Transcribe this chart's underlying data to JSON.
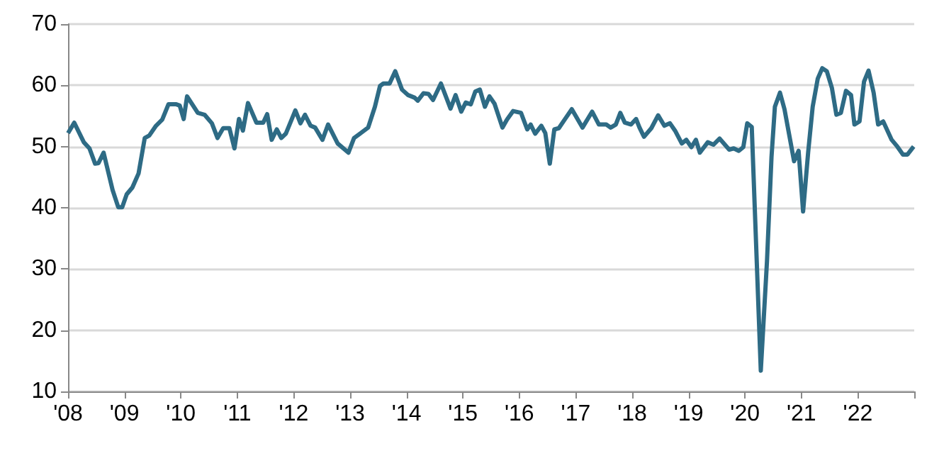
{
  "chart_data": {
    "type": "line",
    "grid": "y",
    "marker": "none",
    "line_style": "solid",
    "xlim": [
      2008,
      2023
    ],
    "xticks": [
      {
        "value": 2008,
        "label": "'08"
      },
      {
        "value": 2009,
        "label": "'09"
      },
      {
        "value": 2010,
        "label": "'10"
      },
      {
        "value": 2011,
        "label": "'11"
      },
      {
        "value": 2012,
        "label": "'12"
      },
      {
        "value": 2013,
        "label": "'13"
      },
      {
        "value": 2014,
        "label": "'14"
      },
      {
        "value": 2015,
        "label": "'15"
      },
      {
        "value": 2016,
        "label": "'16"
      },
      {
        "value": 2017,
        "label": "'17"
      },
      {
        "value": 2018,
        "label": "'18"
      },
      {
        "value": 2019,
        "label": "'19"
      },
      {
        "value": 2020,
        "label": "'20"
      },
      {
        "value": 2021,
        "label": "'21"
      },
      {
        "value": 2022,
        "label": "'22"
      },
      {
        "value": 2023,
        "label": null
      }
    ],
    "ylim": [
      10,
      70
    ],
    "yticks": [
      10,
      20,
      30,
      40,
      50,
      60,
      70
    ],
    "series": [
      {
        "color": "#2e6b85",
        "x": [
          2008.0,
          2008.11,
          2008.28,
          2008.38,
          2008.48,
          2008.54,
          2008.63,
          2008.79,
          2008.89,
          2008.96,
          2009.04,
          2009.14,
          2009.25,
          2009.36,
          2009.44,
          2009.56,
          2009.67,
          2009.78,
          2009.92,
          2009.98,
          2010.05,
          2010.11,
          2010.3,
          2010.42,
          2010.55,
          2010.65,
          2010.75,
          2010.86,
          2010.95,
          2011.03,
          2011.1,
          2011.19,
          2011.34,
          2011.46,
          2011.53,
          2011.61,
          2011.7,
          2011.78,
          2011.86,
          2012.03,
          2012.12,
          2012.2,
          2012.3,
          2012.38,
          2012.51,
          2012.61,
          2012.78,
          2012.97,
          2013.07,
          2013.19,
          2013.32,
          2013.44,
          2013.53,
          2013.59,
          2013.7,
          2013.8,
          2013.92,
          2014.03,
          2014.14,
          2014.2,
          2014.3,
          2014.39,
          2014.47,
          2014.61,
          2014.78,
          2014.87,
          2014.97,
          2015.05,
          2015.14,
          2015.22,
          2015.3,
          2015.39,
          2015.47,
          2015.56,
          2015.7,
          2015.78,
          2015.89,
          2016.03,
          2016.14,
          2016.2,
          2016.28,
          2016.39,
          2016.46,
          2016.54,
          2016.62,
          2016.7,
          2016.81,
          2016.93,
          2017.12,
          2017.29,
          2017.41,
          2017.54,
          2017.62,
          2017.71,
          2017.79,
          2017.87,
          2017.98,
          2018.07,
          2018.13,
          2018.21,
          2018.34,
          2018.46,
          2018.57,
          2018.67,
          2018.76,
          2018.88,
          2018.96,
          2019.05,
          2019.13,
          2019.2,
          2019.34,
          2019.44,
          2019.55,
          2019.72,
          2019.8,
          2019.89,
          2019.97,
          2020.04,
          2020.12,
          2020.28,
          2020.39,
          2020.47,
          2020.53,
          2020.62,
          2020.7,
          2020.87,
          2020.95,
          2021.03,
          2021.12,
          2021.2,
          2021.29,
          2021.37,
          2021.45,
          2021.54,
          2021.62,
          2021.7,
          2021.79,
          2021.88,
          2021.94,
          2022.03,
          2022.11,
          2022.19,
          2022.28,
          2022.36,
          2022.45,
          2022.6,
          2022.7,
          2022.8,
          2022.88,
          2022.99
        ],
        "values": [
          52.2,
          53.9,
          50.7,
          49.7,
          47.2,
          47.3,
          49.0,
          42.9,
          40.1,
          40.1,
          42.2,
          43.3,
          45.6,
          51.4,
          51.8,
          53.4,
          54.4,
          56.9,
          56.9,
          56.7,
          54.5,
          58.2,
          55.5,
          55.2,
          53.8,
          51.4,
          53.0,
          53.0,
          49.7,
          54.5,
          52.6,
          57.1,
          53.9,
          53.9,
          55.3,
          51.1,
          52.8,
          51.4,
          52.1,
          55.9,
          53.8,
          55.2,
          53.4,
          53.1,
          51.1,
          53.6,
          50.5,
          49.0,
          51.4,
          52.2,
          53.1,
          56.5,
          59.9,
          60.3,
          60.3,
          62.3,
          59.3,
          58.4,
          58.0,
          57.5,
          58.7,
          58.6,
          57.6,
          60.3,
          56.2,
          58.4,
          55.7,
          57.2,
          56.9,
          59.0,
          59.3,
          56.5,
          58.2,
          57.0,
          53.1,
          54.4,
          55.8,
          55.5,
          52.8,
          53.6,
          52.1,
          53.4,
          52.2,
          47.2,
          52.8,
          53.0,
          54.5,
          56.1,
          53.1,
          55.7,
          53.6,
          53.6,
          53.1,
          53.6,
          55.5,
          53.9,
          53.6,
          54.5,
          53.1,
          51.6,
          53.0,
          55.1,
          53.4,
          53.8,
          52.6,
          50.5,
          51.1,
          49.9,
          51.1,
          49.0,
          50.7,
          50.3,
          51.3,
          49.5,
          49.7,
          49.3,
          49.9,
          53.8,
          53.2,
          13.4,
          31.3,
          48.3,
          56.5,
          58.8,
          56.1,
          47.6,
          49.3,
          39.4,
          49.1,
          56.5,
          61.1,
          62.8,
          62.3,
          59.6,
          55.2,
          55.5,
          59.1,
          58.4,
          53.6,
          54.1,
          60.6,
          62.4,
          58.8,
          53.6,
          54.1,
          51.1,
          50.0,
          48.7,
          48.7,
          50.0
        ]
      }
    ]
  }
}
